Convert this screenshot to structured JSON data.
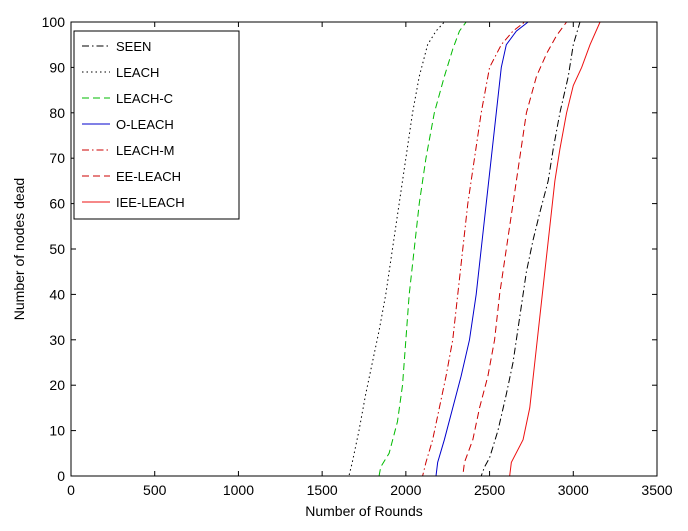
{
  "chart_data": {
    "type": "line",
    "xlabel": "Number of Rounds",
    "ylabel": "Number of nodes dead",
    "xlim": [
      0,
      3500
    ],
    "ylim": [
      0,
      100
    ],
    "xticks": [
      0,
      500,
      1000,
      1500,
      2000,
      2500,
      3000,
      3500
    ],
    "yticks": [
      0,
      10,
      20,
      30,
      40,
      50,
      60,
      70,
      80,
      90,
      100
    ],
    "grid": false,
    "legend_position": "top-left",
    "series": [
      {
        "name": "SEEN",
        "color": "#000000",
        "style": "dashdot",
        "points": [
          [
            0,
            0
          ],
          [
            2450,
            0
          ],
          [
            2470,
            2
          ],
          [
            2500,
            4
          ],
          [
            2550,
            10
          ],
          [
            2600,
            18
          ],
          [
            2640,
            25
          ],
          [
            2680,
            35
          ],
          [
            2720,
            45
          ],
          [
            2760,
            52
          ],
          [
            2800,
            58
          ],
          [
            2850,
            65
          ],
          [
            2880,
            72
          ],
          [
            2920,
            80
          ],
          [
            2970,
            88
          ],
          [
            3000,
            95
          ],
          [
            3040,
            100
          ]
        ]
      },
      {
        "name": "LEACH",
        "color": "#000000",
        "style": "dotted",
        "points": [
          [
            0,
            0
          ],
          [
            1660,
            0
          ],
          [
            1680,
            3
          ],
          [
            1720,
            10
          ],
          [
            1760,
            18
          ],
          [
            1800,
            25
          ],
          [
            1840,
            32
          ],
          [
            1880,
            40
          ],
          [
            1920,
            50
          ],
          [
            1960,
            60
          ],
          [
            2000,
            70
          ],
          [
            2040,
            80
          ],
          [
            2080,
            88
          ],
          [
            2130,
            95
          ],
          [
            2180,
            98
          ],
          [
            2230,
            100
          ]
        ]
      },
      {
        "name": "LEACH-C",
        "color": "#00bb00",
        "style": "dashed",
        "points": [
          [
            0,
            0
          ],
          [
            1840,
            0
          ],
          [
            1850,
            2
          ],
          [
            1900,
            5
          ],
          [
            1950,
            12
          ],
          [
            1980,
            20
          ],
          [
            2000,
            30
          ],
          [
            2020,
            40
          ],
          [
            2050,
            50
          ],
          [
            2080,
            60
          ],
          [
            2120,
            70
          ],
          [
            2170,
            80
          ],
          [
            2230,
            88
          ],
          [
            2280,
            94
          ],
          [
            2320,
            98
          ],
          [
            2360,
            100
          ]
        ]
      },
      {
        "name": "O-LEACH",
        "color": "#0000cc",
        "style": "solid",
        "points": [
          [
            0,
            0
          ],
          [
            2180,
            0
          ],
          [
            2190,
            3
          ],
          [
            2230,
            8
          ],
          [
            2280,
            15
          ],
          [
            2330,
            22
          ],
          [
            2380,
            30
          ],
          [
            2420,
            40
          ],
          [
            2450,
            50
          ],
          [
            2480,
            60
          ],
          [
            2510,
            70
          ],
          [
            2540,
            80
          ],
          [
            2570,
            90
          ],
          [
            2600,
            95
          ],
          [
            2660,
            98
          ],
          [
            2730,
            100
          ]
        ]
      },
      {
        "name": "LEACH-M",
        "color": "#cc0000",
        "style": "dashdot",
        "points": [
          [
            0,
            0
          ],
          [
            2100,
            0
          ],
          [
            2120,
            3
          ],
          [
            2160,
            8
          ],
          [
            2200,
            15
          ],
          [
            2240,
            22
          ],
          [
            2280,
            30
          ],
          [
            2310,
            40
          ],
          [
            2340,
            50
          ],
          [
            2370,
            60
          ],
          [
            2410,
            70
          ],
          [
            2450,
            80
          ],
          [
            2500,
            90
          ],
          [
            2570,
            95
          ],
          [
            2640,
            98
          ],
          [
            2710,
            100
          ]
        ]
      },
      {
        "name": "EE-LEACH",
        "color": "#cc0000",
        "style": "dashed",
        "points": [
          [
            0,
            0
          ],
          [
            2340,
            0
          ],
          [
            2350,
            3
          ],
          [
            2400,
            8
          ],
          [
            2440,
            15
          ],
          [
            2490,
            22
          ],
          [
            2530,
            30
          ],
          [
            2560,
            40
          ],
          [
            2600,
            50
          ],
          [
            2640,
            60
          ],
          [
            2680,
            70
          ],
          [
            2720,
            80
          ],
          [
            2780,
            88
          ],
          [
            2840,
            93
          ],
          [
            2900,
            97
          ],
          [
            2960,
            100
          ]
        ]
      },
      {
        "name": "IEE-LEACH",
        "color": "#ee1111",
        "style": "solid",
        "points": [
          [
            0,
            0
          ],
          [
            2620,
            0
          ],
          [
            2630,
            3
          ],
          [
            2700,
            8
          ],
          [
            2740,
            15
          ],
          [
            2770,
            25
          ],
          [
            2800,
            35
          ],
          [
            2830,
            45
          ],
          [
            2860,
            55
          ],
          [
            2890,
            65
          ],
          [
            2920,
            72
          ],
          [
            2960,
            80
          ],
          [
            3000,
            86
          ],
          [
            3050,
            90
          ],
          [
            3100,
            95
          ],
          [
            3160,
            100
          ]
        ]
      }
    ]
  }
}
